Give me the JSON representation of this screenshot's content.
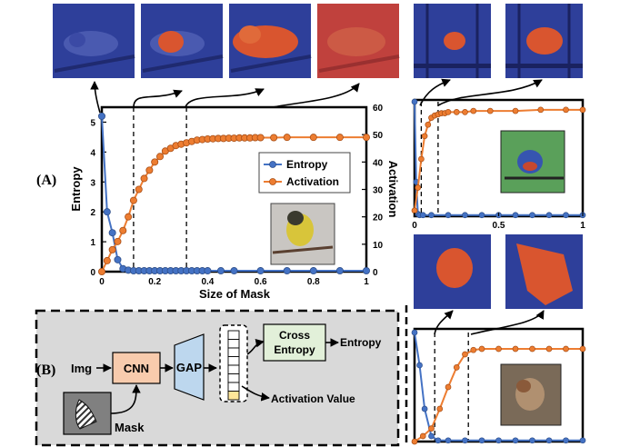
{
  "panel_labels": {
    "a": "(A)",
    "b": "(B)"
  },
  "main_chart": {
    "type": "line",
    "xlabel": "Size of Mask",
    "ylabel_left": "Entropy",
    "ylabel_right": "Activation",
    "x_ticks": [
      "0",
      "0.2",
      "0.4",
      "0.6",
      "0.8",
      "1"
    ],
    "y_left_ticks": [
      "0",
      "1",
      "2",
      "3",
      "4",
      "5"
    ],
    "y_right_ticks": [
      "0",
      "10",
      "20",
      "30",
      "40",
      "50",
      "60"
    ],
    "xlim": [
      0,
      1
    ],
    "ylim_left": [
      0,
      5.5
    ],
    "ylim_right": [
      0,
      60
    ],
    "legend": [
      "Entropy",
      "Activation"
    ],
    "legend_position": "right",
    "marked_x": [
      0.12,
      0.32
    ],
    "series": [
      {
        "name": "Entropy",
        "axis": "left",
        "color": "#4472c4",
        "x": [
          0,
          0.02,
          0.04,
          0.06,
          0.08,
          0.1,
          0.12,
          0.14,
          0.16,
          0.18,
          0.2,
          0.22,
          0.24,
          0.26,
          0.28,
          0.3,
          0.32,
          0.34,
          0.36,
          0.38,
          0.4,
          0.45,
          0.5,
          0.6,
          0.7,
          0.8,
          0.9,
          1.0
        ],
        "y": [
          5.2,
          2.0,
          1.3,
          0.4,
          0.1,
          0.05,
          0.03,
          0.03,
          0.03,
          0.03,
          0.03,
          0.03,
          0.03,
          0.03,
          0.03,
          0.03,
          0.03,
          0.03,
          0.03,
          0.03,
          0.03,
          0.03,
          0.03,
          0.03,
          0.03,
          0.03,
          0.03,
          0.03
        ]
      },
      {
        "name": "Activation",
        "axis": "right",
        "color": "#ed7d31",
        "x": [
          0,
          0.02,
          0.04,
          0.06,
          0.08,
          0.1,
          0.12,
          0.14,
          0.16,
          0.18,
          0.2,
          0.22,
          0.24,
          0.26,
          0.28,
          0.3,
          0.32,
          0.34,
          0.36,
          0.38,
          0.4,
          0.42,
          0.44,
          0.46,
          0.48,
          0.5,
          0.52,
          0.54,
          0.56,
          0.58,
          0.6,
          0.65,
          0.7,
          0.8,
          0.9,
          1.0
        ],
        "y": [
          0,
          4,
          8,
          11,
          15,
          20,
          26,
          30,
          34,
          37,
          40,
          42,
          44,
          45,
          46,
          46.5,
          47,
          47.5,
          48,
          48.2,
          48.4,
          48.5,
          48.6,
          48.6,
          48.7,
          48.7,
          48.8,
          48.8,
          48.8,
          48.9,
          48.9,
          48.9,
          49,
          49,
          49,
          49
        ]
      }
    ]
  },
  "small_chart_top": {
    "type": "line",
    "x_ticks": [
      "0",
      "0.5",
      "1"
    ],
    "xlim": [
      0,
      1
    ],
    "marked_x": [
      0.04,
      0.14
    ],
    "series": [
      {
        "name": "Entropy",
        "color": "#4472c4",
        "x": [
          0,
          0.01,
          0.02,
          0.03,
          0.05,
          0.1,
          0.2,
          0.3,
          0.4,
          0.5,
          0.6,
          0.7,
          0.8,
          0.9,
          1.0
        ],
        "y": [
          1.0,
          0.3,
          0.02,
          0.01,
          0.01,
          0.01,
          0.01,
          0.01,
          0.01,
          0.01,
          0.01,
          0.01,
          0.01,
          0.01,
          0.01
        ]
      },
      {
        "name": "Activation",
        "color": "#ed7d31",
        "x": [
          0,
          0.02,
          0.04,
          0.06,
          0.08,
          0.1,
          0.12,
          0.14,
          0.16,
          0.18,
          0.2,
          0.25,
          0.3,
          0.35,
          0.45,
          0.6,
          0.75,
          0.9,
          1.0
        ],
        "y": [
          0.05,
          0.25,
          0.5,
          0.7,
          0.8,
          0.86,
          0.88,
          0.89,
          0.9,
          0.9,
          0.91,
          0.91,
          0.91,
          0.92,
          0.92,
          0.92,
          0.93,
          0.93,
          0.93
        ]
      }
    ]
  },
  "small_chart_bottom": {
    "type": "line",
    "xlim": [
      0,
      1
    ],
    "marked_x": [
      0.12,
      0.32
    ],
    "series": [
      {
        "name": "Entropy",
        "color": "#4472c4",
        "x": [
          0,
          0.03,
          0.06,
          0.1,
          0.14,
          0.2,
          0.3,
          0.4,
          0.5,
          0.6,
          0.7,
          0.8,
          0.9,
          1.0
        ],
        "y": [
          1.0,
          0.7,
          0.3,
          0.05,
          0.01,
          0.01,
          0.01,
          0.01,
          0.01,
          0.01,
          0.01,
          0.01,
          0.01,
          0.01
        ]
      },
      {
        "name": "Activation",
        "color": "#ed7d31",
        "x": [
          0,
          0.05,
          0.1,
          0.15,
          0.2,
          0.25,
          0.3,
          0.35,
          0.4,
          0.5,
          0.6,
          0.7,
          0.8,
          0.9,
          1.0
        ],
        "y": [
          0.0,
          0.05,
          0.12,
          0.3,
          0.5,
          0.68,
          0.8,
          0.84,
          0.85,
          0.85,
          0.85,
          0.85,
          0.85,
          0.85,
          0.85
        ]
      }
    ]
  },
  "diagram": {
    "input_label": "Img",
    "cnn_label": "CNN",
    "gap_label": "GAP",
    "loss_label_line1": "Cross",
    "loss_label_line2": "Entropy",
    "entropy_output": "Entropy",
    "activation_output": "Activation Value",
    "mask_label": "Mask"
  },
  "colors": {
    "entropy": "#4472c4",
    "activation": "#ed7d31",
    "cnn_fill": "#f8cbad",
    "gap_fill": "#bdd7ee",
    "loss_fill": "#e2f0d9",
    "diagram_bg": "#d9d9d9"
  }
}
